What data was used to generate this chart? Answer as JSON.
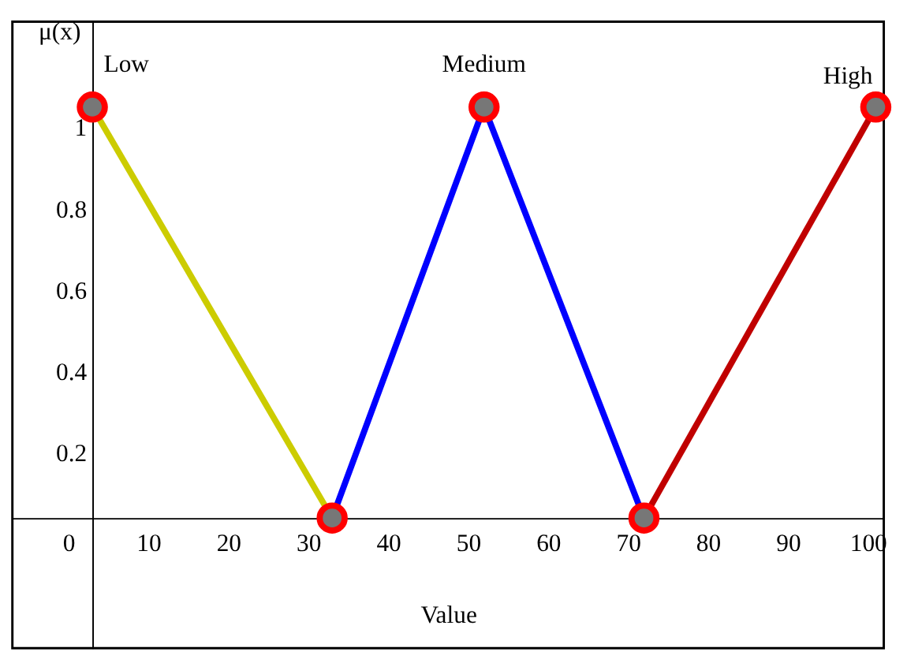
{
  "chart_data": {
    "type": "line",
    "xlabel": "Value",
    "ylabel": "μ(x)",
    "xlim": [
      -7,
      102
    ],
    "ylim": [
      -0.28,
      1.26
    ],
    "xticks": [
      0,
      10,
      20,
      30,
      40,
      50,
      60,
      70,
      80,
      90,
      100
    ],
    "yticks": [
      0.2,
      0.4,
      0.6,
      0.8,
      1
    ],
    "grid": false,
    "line_style": "solid",
    "series": [
      {
        "color": "#cccc00",
        "x": [
          3,
          33
        ],
        "values": [
          1.05,
          0.04
        ],
        "marker": "none"
      },
      {
        "color": "#0000ff",
        "x": [
          33,
          52,
          72
        ],
        "values": [
          0.04,
          1.05,
          0.04
        ],
        "marker": "none"
      },
      {
        "color": "#c00000",
        "x": [
          72,
          101
        ],
        "values": [
          0.04,
          1.05
        ],
        "marker": "none"
      },
      {
        "type": "scatter",
        "color": "#ff0000",
        "x": [
          3,
          33,
          52,
          72,
          101
        ],
        "values": [
          1.05,
          0.04,
          1.05,
          0.04,
          1.05
        ],
        "marker": "circle"
      }
    ],
    "annotations": [
      "Low",
      "Medium",
      "High"
    ]
  }
}
